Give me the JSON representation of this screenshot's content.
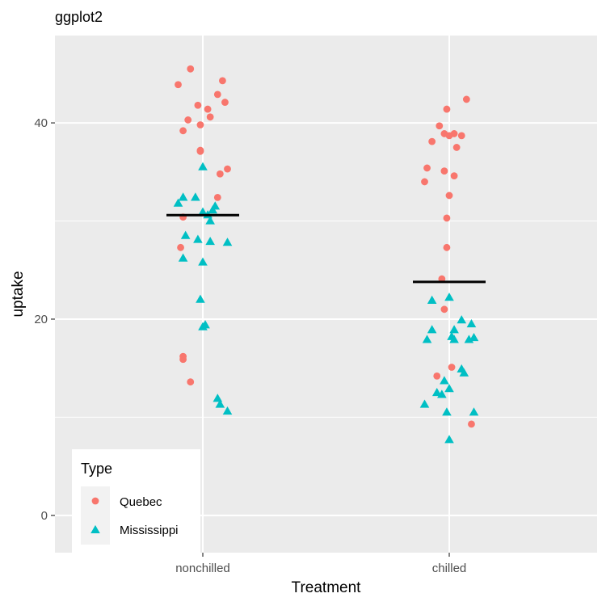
{
  "chart_data": {
    "type": "scatter",
    "title": "ggplot2",
    "xlabel": "Treatment",
    "ylabel": "uptake",
    "categories": [
      "nonchilled",
      "chilled"
    ],
    "ylim": [
      -3.8,
      48.9
    ],
    "yticks": [
      0,
      20,
      40
    ],
    "grid": true,
    "legend": {
      "title": "Type",
      "position": "bottom-left",
      "entries": [
        {
          "label": "Quebec",
          "shape": "circle",
          "color": "#F8766D"
        },
        {
          "label": "Mississippi",
          "shape": "triangle",
          "color": "#00BFC4"
        }
      ]
    },
    "series": [
      {
        "name": "Quebec",
        "shape": "circle",
        "color": "#F8766D",
        "points": [
          {
            "x": "nonchilled",
            "jitter": -0.05,
            "y": 45.5
          },
          {
            "x": "nonchilled",
            "jitter": -0.1,
            "y": 43.9
          },
          {
            "x": "nonchilled",
            "jitter": 0.08,
            "y": 44.3
          },
          {
            "x": "nonchilled",
            "jitter": 0.06,
            "y": 42.9
          },
          {
            "x": "nonchilled",
            "jitter": 0.09,
            "y": 42.1
          },
          {
            "x": "nonchilled",
            "jitter": -0.02,
            "y": 41.8
          },
          {
            "x": "nonchilled",
            "jitter": 0.02,
            "y": 41.4
          },
          {
            "x": "nonchilled",
            "jitter": 0.03,
            "y": 40.6
          },
          {
            "x": "nonchilled",
            "jitter": -0.06,
            "y": 40.3
          },
          {
            "x": "nonchilled",
            "jitter": -0.01,
            "y": 39.8
          },
          {
            "x": "nonchilled",
            "jitter": -0.08,
            "y": 39.2
          },
          {
            "x": "nonchilled",
            "jitter": -0.01,
            "y": 37.2
          },
          {
            "x": "nonchilled",
            "jitter": -0.01,
            "y": 37.1
          },
          {
            "x": "nonchilled",
            "jitter": 0.1,
            "y": 35.3
          },
          {
            "x": "nonchilled",
            "jitter": 0.07,
            "y": 34.8
          },
          {
            "x": "nonchilled",
            "jitter": 0.06,
            "y": 32.4
          },
          {
            "x": "nonchilled",
            "jitter": -0.08,
            "y": 30.4
          },
          {
            "x": "nonchilled",
            "jitter": -0.09,
            "y": 27.3
          },
          {
            "x": "nonchilled",
            "jitter": -0.08,
            "y": 16.2
          },
          {
            "x": "nonchilled",
            "jitter": -0.08,
            "y": 15.9
          },
          {
            "x": "nonchilled",
            "jitter": -0.05,
            "y": 13.6
          },
          {
            "x": "chilled",
            "jitter": 0.07,
            "y": 42.4
          },
          {
            "x": "chilled",
            "jitter": -0.01,
            "y": 41.4
          },
          {
            "x": "chilled",
            "jitter": -0.04,
            "y": 39.7
          },
          {
            "x": "chilled",
            "jitter": -0.02,
            "y": 38.9
          },
          {
            "x": "chilled",
            "jitter": 0.02,
            "y": 38.9
          },
          {
            "x": "chilled",
            "jitter": 0.0,
            "y": 38.7
          },
          {
            "x": "chilled",
            "jitter": 0.05,
            "y": 38.7
          },
          {
            "x": "chilled",
            "jitter": -0.07,
            "y": 38.1
          },
          {
            "x": "chilled",
            "jitter": 0.03,
            "y": 37.5
          },
          {
            "x": "chilled",
            "jitter": -0.09,
            "y": 35.4
          },
          {
            "x": "chilled",
            "jitter": -0.02,
            "y": 35.1
          },
          {
            "x": "chilled",
            "jitter": 0.02,
            "y": 34.6
          },
          {
            "x": "chilled",
            "jitter": -0.1,
            "y": 34.0
          },
          {
            "x": "chilled",
            "jitter": 0.0,
            "y": 32.6
          },
          {
            "x": "chilled",
            "jitter": -0.01,
            "y": 30.3
          },
          {
            "x": "chilled",
            "jitter": -0.01,
            "y": 27.3
          },
          {
            "x": "chilled",
            "jitter": -0.03,
            "y": 24.1
          },
          {
            "x": "chilled",
            "jitter": -0.02,
            "y": 21.0
          },
          {
            "x": "chilled",
            "jitter": 0.01,
            "y": 15.1
          },
          {
            "x": "chilled",
            "jitter": -0.05,
            "y": 14.2
          },
          {
            "x": "chilled",
            "jitter": 0.09,
            "y": 9.3
          }
        ]
      },
      {
        "name": "Mississippi",
        "shape": "triangle",
        "color": "#00BFC4",
        "points": [
          {
            "x": "nonchilled",
            "jitter": 0.0,
            "y": 35.5
          },
          {
            "x": "nonchilled",
            "jitter": -0.08,
            "y": 32.4
          },
          {
            "x": "nonchilled",
            "jitter": -0.03,
            "y": 32.4
          },
          {
            "x": "nonchilled",
            "jitter": -0.1,
            "y": 31.8
          },
          {
            "x": "nonchilled",
            "jitter": 0.05,
            "y": 31.5
          },
          {
            "x": "nonchilled",
            "jitter": 0.04,
            "y": 31.1
          },
          {
            "x": "nonchilled",
            "jitter": 0.0,
            "y": 30.9
          },
          {
            "x": "nonchilled",
            "jitter": 0.02,
            "y": 30.6
          },
          {
            "x": "nonchilled",
            "jitter": 0.03,
            "y": 30.0
          },
          {
            "x": "nonchilled",
            "jitter": -0.07,
            "y": 28.5
          },
          {
            "x": "nonchilled",
            "jitter": -0.02,
            "y": 28.1
          },
          {
            "x": "nonchilled",
            "jitter": 0.03,
            "y": 27.9
          },
          {
            "x": "nonchilled",
            "jitter": 0.1,
            "y": 27.8
          },
          {
            "x": "nonchilled",
            "jitter": -0.08,
            "y": 26.2
          },
          {
            "x": "nonchilled",
            "jitter": 0.0,
            "y": 25.8
          },
          {
            "x": "nonchilled",
            "jitter": -0.01,
            "y": 22.0
          },
          {
            "x": "nonchilled",
            "jitter": 0.01,
            "y": 19.4
          },
          {
            "x": "nonchilled",
            "jitter": 0.0,
            "y": 19.2
          },
          {
            "x": "nonchilled",
            "jitter": 0.06,
            "y": 11.9
          },
          {
            "x": "nonchilled",
            "jitter": 0.07,
            "y": 11.3
          },
          {
            "x": "nonchilled",
            "jitter": 0.1,
            "y": 10.6
          },
          {
            "x": "chilled",
            "jitter": -0.07,
            "y": 21.9
          },
          {
            "x": "chilled",
            "jitter": 0.0,
            "y": 22.2
          },
          {
            "x": "chilled",
            "jitter": 0.05,
            "y": 19.9
          },
          {
            "x": "chilled",
            "jitter": 0.09,
            "y": 19.5
          },
          {
            "x": "chilled",
            "jitter": -0.07,
            "y": 18.9
          },
          {
            "x": "chilled",
            "jitter": 0.02,
            "y": 18.9
          },
          {
            "x": "chilled",
            "jitter": -0.09,
            "y": 17.9
          },
          {
            "x": "chilled",
            "jitter": 0.01,
            "y": 18.2
          },
          {
            "x": "chilled",
            "jitter": 0.02,
            "y": 17.9
          },
          {
            "x": "chilled",
            "jitter": 0.08,
            "y": 17.9
          },
          {
            "x": "chilled",
            "jitter": 0.1,
            "y": 18.1
          },
          {
            "x": "chilled",
            "jitter": 0.05,
            "y": 14.9
          },
          {
            "x": "chilled",
            "jitter": 0.06,
            "y": 14.5
          },
          {
            "x": "chilled",
            "jitter": -0.02,
            "y": 13.7
          },
          {
            "x": "chilled",
            "jitter": -0.05,
            "y": 12.5
          },
          {
            "x": "chilled",
            "jitter": -0.03,
            "y": 12.3
          },
          {
            "x": "chilled",
            "jitter": 0.0,
            "y": 12.9
          },
          {
            "x": "chilled",
            "jitter": -0.1,
            "y": 11.3
          },
          {
            "x": "chilled",
            "jitter": -0.01,
            "y": 10.5
          },
          {
            "x": "chilled",
            "jitter": 0.1,
            "y": 10.5
          },
          {
            "x": "chilled",
            "jitter": 0.0,
            "y": 7.7
          }
        ]
      }
    ],
    "summary": {
      "stat": "mean",
      "values": [
        {
          "x": "nonchilled",
          "y": 30.6
        },
        {
          "x": "chilled",
          "y": 23.8
        }
      ]
    }
  }
}
